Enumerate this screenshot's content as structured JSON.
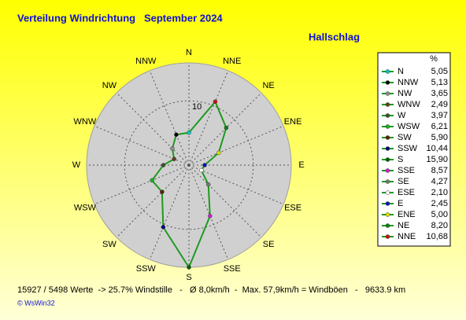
{
  "chart_data": {
    "type": "radar",
    "title": "Verteilung Windrichtung   September 2024",
    "subtitle": "Hallschlag",
    "legend_header": "%",
    "categories": [
      "N",
      "NNE",
      "NE",
      "ENE",
      "E",
      "ESE",
      "SE",
      "SSE",
      "S",
      "SSW",
      "SW",
      "WSW",
      "W",
      "WNW",
      "NW",
      "NNW"
    ],
    "values": [
      5.05,
      10.68,
      8.2,
      5.0,
      2.45,
      2.1,
      4.27,
      8.57,
      15.9,
      10.44,
      5.9,
      6.21,
      3.97,
      2.49,
      3.65,
      5.13
    ],
    "value_labels": [
      "5,05",
      "10,68",
      "8,20",
      "5,00",
      "2,45",
      "2,10",
      "4,27",
      "8,57",
      "15,90",
      "10,44",
      "5,90",
      "6,21",
      "3,97",
      "2,49",
      "3,65",
      "5,13"
    ],
    "point_colors": [
      "#00c8c8",
      "#d01010",
      "#108010",
      "#e0e000",
      "#1010c0",
      "#ffffff",
      "#708070",
      "#d020d0",
      "#006000",
      "#000080",
      "#602010",
      "#20b020",
      "#405030",
      "#604020",
      "#909090",
      "#000000"
    ],
    "line_color": "#1e9a1e",
    "rlim": [
      0,
      15.9
    ],
    "rticks": [
      10
    ],
    "footer": "15927 / 5498 Werte  -> 25.7% Windstille   -   Ø 8,0km/h  -  Max. 57,9km/h = Windböen   -   9633.9 km",
    "credit": "© WsWin32"
  }
}
